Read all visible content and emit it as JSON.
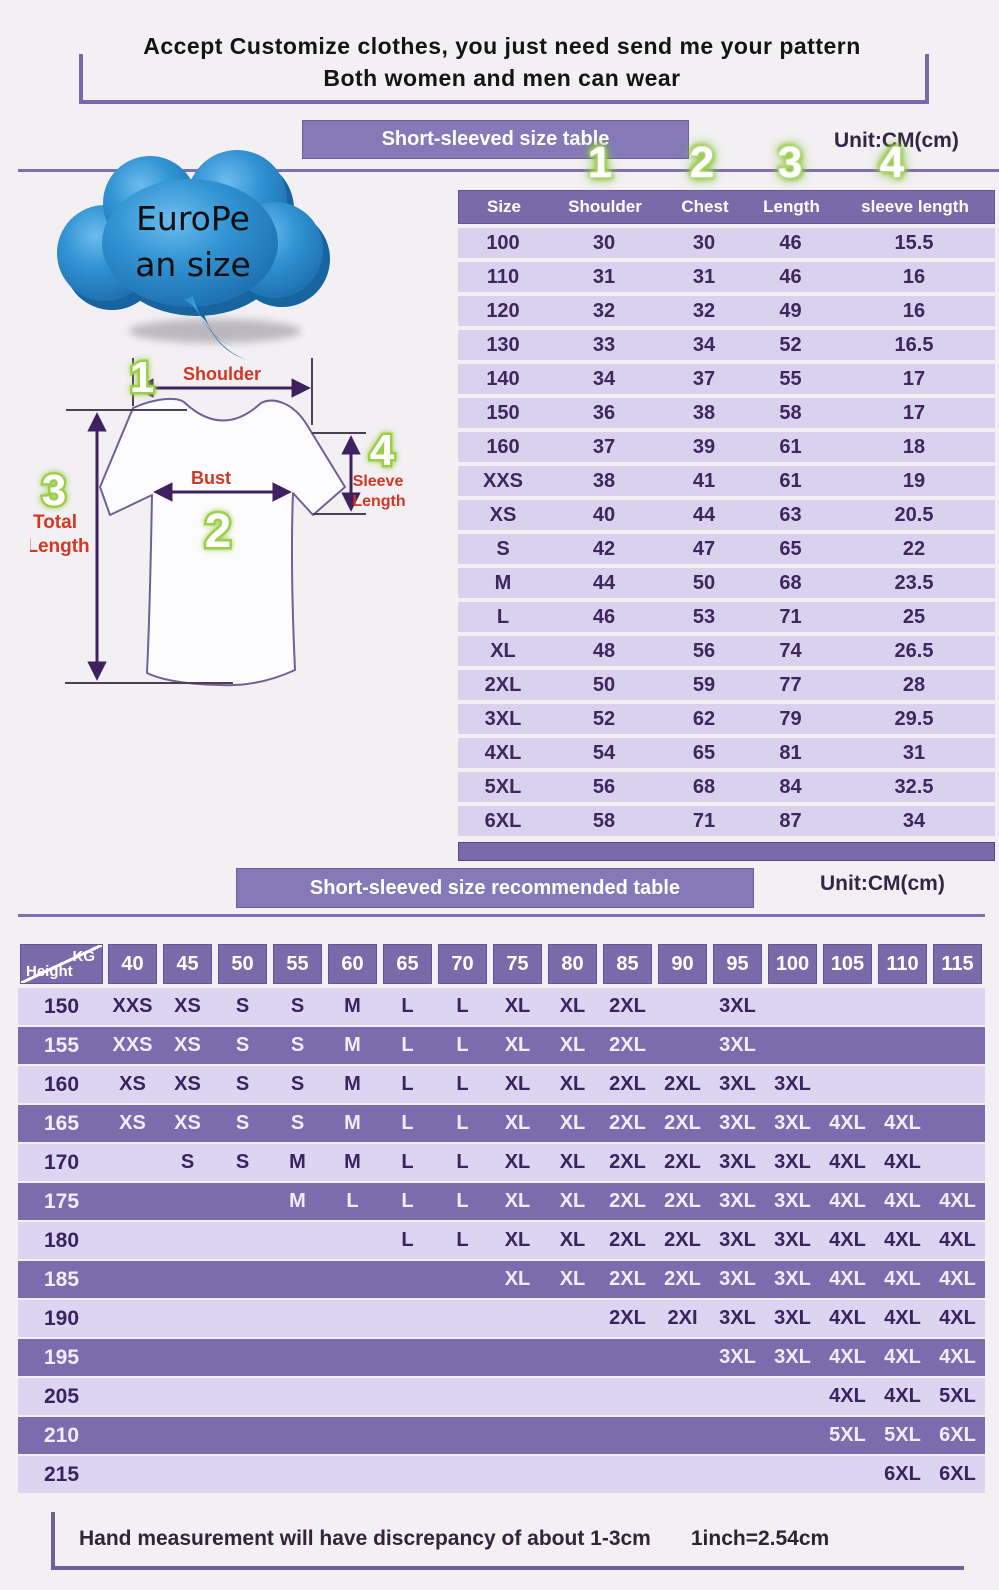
{
  "header": {
    "line1": "Accept Customize clothes, you just need send me your pattern",
    "line2": "Both women and men can wear"
  },
  "cloud": {
    "line1": "EuroPe",
    "line2": "an  size"
  },
  "size_table": {
    "banner": "Short-sleeved size  table",
    "unit": "Unit:CM(cm)",
    "markers": [
      "1",
      "2",
      "3",
      "4"
    ],
    "columns": [
      "Size",
      "Shoulder",
      "Chest",
      "Length",
      "sleeve length"
    ],
    "rows": [
      [
        "100",
        "30",
        "30",
        "46",
        "15.5"
      ],
      [
        "110",
        "31",
        "31",
        "46",
        "16"
      ],
      [
        "120",
        "32",
        "32",
        "49",
        "16"
      ],
      [
        "130",
        "33",
        "34",
        "52",
        "16.5"
      ],
      [
        "140",
        "34",
        "37",
        "55",
        "17"
      ],
      [
        "150",
        "36",
        "38",
        "58",
        "17"
      ],
      [
        "160",
        "37",
        "39",
        "61",
        "18"
      ],
      [
        "XXS",
        "38",
        "41",
        "61",
        "19"
      ],
      [
        "XS",
        "40",
        "44",
        "63",
        "20.5"
      ],
      [
        "S",
        "42",
        "47",
        "65",
        "22"
      ],
      [
        "M",
        "44",
        "50",
        "68",
        "23.5"
      ],
      [
        "L",
        "46",
        "53",
        "71",
        "25"
      ],
      [
        "XL",
        "48",
        "56",
        "74",
        "26.5"
      ],
      [
        "2XL",
        "50",
        "59",
        "77",
        "28"
      ],
      [
        "3XL",
        "52",
        "62",
        "79",
        "29.5"
      ],
      [
        "4XL",
        "54",
        "65",
        "81",
        "31"
      ],
      [
        "5XL",
        "56",
        "68",
        "84",
        "32.5"
      ],
      [
        "6XL",
        "58",
        "71",
        "87",
        "34"
      ]
    ]
  },
  "diagram": {
    "shoulder": {
      "marker": "1",
      "label": "Shoulder"
    },
    "bust": {
      "marker": "2",
      "label": "Bust"
    },
    "total_length": {
      "marker": "3",
      "label_line1": "Total",
      "label_line2": "Length"
    },
    "sleeve_length": {
      "marker": "4",
      "label_line1": "Sleeve",
      "label_line2": "Length"
    }
  },
  "recommend_table": {
    "banner": "Short-sleeved size recommended table",
    "unit": "Unit:CM(cm)",
    "corner_top": "KG",
    "corner_bottom": "Height",
    "weights": [
      "40",
      "45",
      "50",
      "55",
      "60",
      "65",
      "70",
      "75",
      "80",
      "85",
      "90",
      "95",
      "100",
      "105",
      "110",
      "115"
    ],
    "rows": [
      {
        "height": "150",
        "cells": [
          "XXS",
          "XS",
          "S",
          "S",
          "M",
          "L",
          "L",
          "XL",
          "XL",
          "2XL",
          "",
          "3XL",
          "",
          "",
          "",
          ""
        ]
      },
      {
        "height": "155",
        "cells": [
          "XXS",
          "XS",
          "S",
          "S",
          "M",
          "L",
          "L",
          "XL",
          "XL",
          "2XL",
          "",
          "3XL",
          "",
          "",
          "",
          ""
        ]
      },
      {
        "height": "160",
        "cells": [
          "XS",
          "XS",
          "S",
          "S",
          "M",
          "L",
          "L",
          "XL",
          "XL",
          "2XL",
          "2XL",
          "3XL",
          "3XL",
          "",
          "",
          ""
        ]
      },
      {
        "height": "165",
        "cells": [
          "XS",
          "XS",
          "S",
          "S",
          "M",
          "L",
          "L",
          "XL",
          "XL",
          "2XL",
          "2XL",
          "3XL",
          "3XL",
          "4XL",
          "4XL",
          ""
        ]
      },
      {
        "height": "170",
        "cells": [
          "",
          "S",
          "S",
          "M",
          "M",
          "L",
          "L",
          "XL",
          "XL",
          "2XL",
          "2XL",
          "3XL",
          "3XL",
          "4XL",
          "4XL",
          ""
        ]
      },
      {
        "height": "175",
        "cells": [
          "",
          "",
          "",
          "M",
          "L",
          "L",
          "L",
          "XL",
          "XL",
          "2XL",
          "2XL",
          "3XL",
          "3XL",
          "4XL",
          "4XL",
          "4XL"
        ]
      },
      {
        "height": "180",
        "cells": [
          "",
          "",
          "",
          "",
          "",
          "L",
          "L",
          "XL",
          "XL",
          "2XL",
          "2XL",
          "3XL",
          "3XL",
          "4XL",
          "4XL",
          "4XL"
        ]
      },
      {
        "height": "185",
        "cells": [
          "",
          "",
          "",
          "",
          "",
          "",
          "",
          "XL",
          "XL",
          "2XL",
          "2XL",
          "3XL",
          "3XL",
          "4XL",
          "4XL",
          "4XL"
        ]
      },
      {
        "height": "190",
        "cells": [
          "",
          "",
          "",
          "",
          "",
          "",
          "",
          "",
          "",
          "2XL",
          "2XI",
          "3XL",
          "3XL",
          "4XL",
          "4XL",
          "4XL"
        ]
      },
      {
        "height": "195",
        "cells": [
          "",
          "",
          "",
          "",
          "",
          "",
          "",
          "",
          "",
          "",
          "",
          "3XL",
          "3XL",
          "4XL",
          "4XL",
          "4XL"
        ]
      },
      {
        "height": "205",
        "cells": [
          "",
          "",
          "",
          "",
          "",
          "",
          "",
          "",
          "",
          "",
          "",
          "",
          "",
          "4XL",
          "4XL",
          "5XL"
        ]
      },
      {
        "height": "210",
        "cells": [
          "",
          "",
          "",
          "",
          "",
          "",
          "",
          "",
          "",
          "",
          "",
          "",
          "",
          "5XL",
          "5XL",
          "6XL"
        ]
      },
      {
        "height": "215",
        "cells": [
          "",
          "",
          "",
          "",
          "",
          "",
          "",
          "",
          "",
          "",
          "",
          "",
          "",
          "",
          "6XL",
          "6XL"
        ]
      }
    ]
  },
  "footer": {
    "note": "Hand measurement will have discrepancy of about  1-3cm",
    "conversion": "1inch=2.54cm"
  },
  "colors": {
    "banner_purple": "#8579b8",
    "table_header_purple": "#7b6aaa",
    "row_lavender": "#d9d2ef",
    "row_dark_purple": "#7c6cae",
    "value_text": "#40265e",
    "label_red": "#d23723",
    "marker_green": "#9ccf49",
    "cloud_blue": "#2d87c8"
  }
}
